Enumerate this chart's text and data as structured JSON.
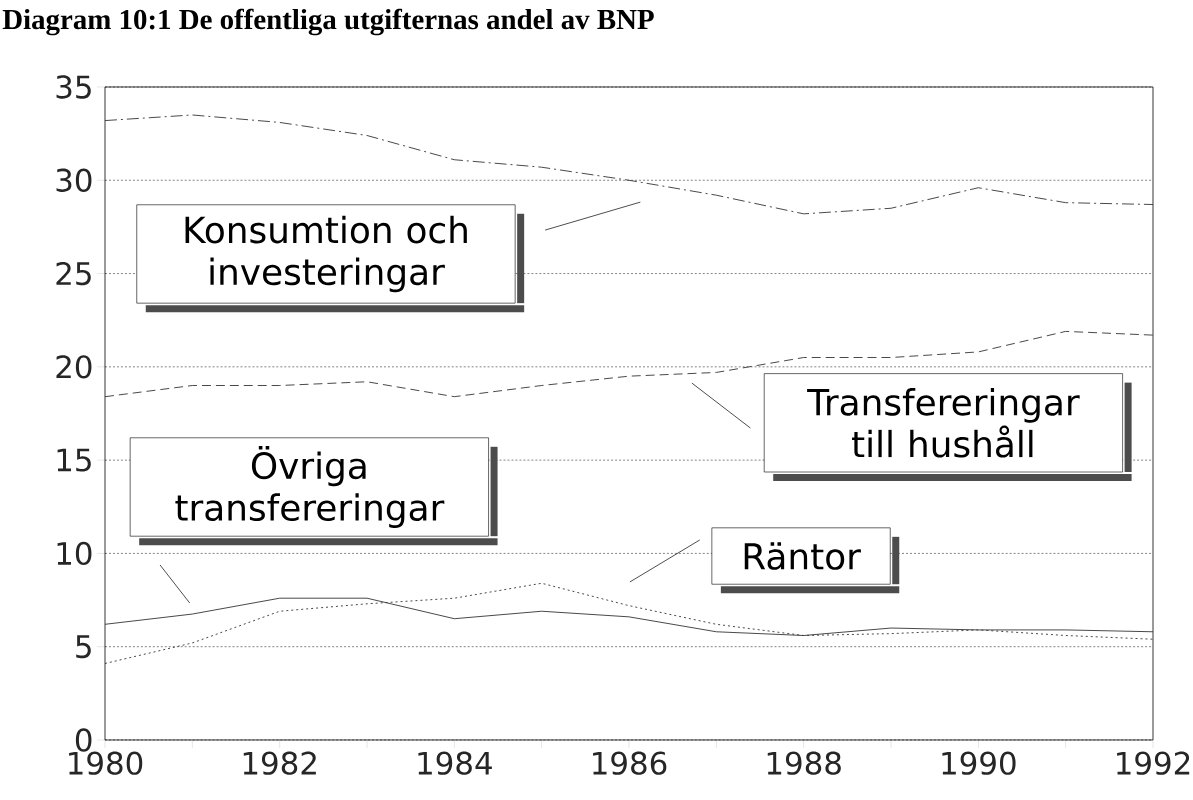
{
  "chart_data": {
    "type": "line",
    "title": "Diagram 10:1   De offentliga utgifternas andel av BNP",
    "x": [
      1980,
      1981,
      1982,
      1983,
      1984,
      1985,
      1986,
      1987,
      1988,
      1989,
      1990,
      1991,
      1992
    ],
    "series": [
      {
        "name": "Konsumtion och investeringar",
        "color": "#333333",
        "line_style": "dashdot",
        "values": [
          33.2,
          33.5,
          33.1,
          32.4,
          31.1,
          30.7,
          30.0,
          29.2,
          28.2,
          28.5,
          29.6,
          28.8,
          28.7
        ]
      },
      {
        "name": "Transfereringar till hushåll",
        "color": "#333333",
        "line_style": "dashed",
        "values": [
          18.4,
          19.0,
          19.0,
          19.2,
          18.4,
          19.0,
          19.5,
          19.7,
          20.5,
          20.5,
          20.8,
          21.9,
          21.7
        ]
      },
      {
        "name": "Övriga transfereringar",
        "color": "#333333",
        "line_style": "solid",
        "values": [
          6.2,
          6.75,
          7.6,
          7.6,
          6.5,
          6.9,
          6.6,
          5.8,
          5.6,
          6.0,
          5.9,
          5.9,
          5.8
        ]
      },
      {
        "name": "Räntor",
        "color": "#333333",
        "line_style": "dotted",
        "values": [
          4.1,
          5.2,
          6.9,
          7.3,
          7.6,
          8.4,
          7.2,
          6.2,
          5.6,
          5.7,
          5.9,
          5.6,
          5.4
        ]
      }
    ],
    "xlim": [
      1980,
      1992
    ],
    "xticks": [
      1980,
      1982,
      1984,
      1986,
      1988,
      1990,
      1992
    ],
    "ylim": [
      0,
      35
    ],
    "yticks": [
      0,
      5,
      10,
      15,
      20,
      25,
      30,
      35
    ],
    "grid": "y",
    "legend": false,
    "marker": "none"
  }
}
